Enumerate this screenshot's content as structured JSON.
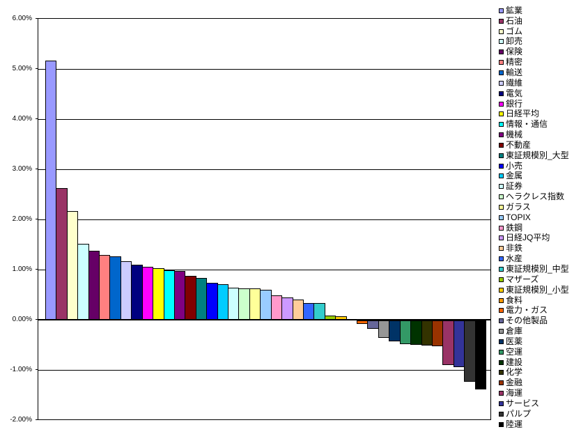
{
  "chart_data": {
    "type": "bar",
    "title": "",
    "xlabel": "",
    "ylabel": "",
    "ylim": [
      -2.0,
      6.0
    ],
    "ytick_step": 1.0,
    "ytick_labels": [
      "6.00%",
      "5.00%",
      "4.00%",
      "3.00%",
      "2.00%",
      "1.00%",
      "0.00%",
      "-1.00%",
      "-2.00%"
    ],
    "grid": true,
    "legend_position": "right",
    "bar_outline_color": "#000000",
    "series": [
      {
        "name": "鉱業",
        "value": 5.16,
        "color": "#9999FF"
      },
      {
        "name": "石油",
        "value": 2.63,
        "color": "#993366"
      },
      {
        "name": "ゴム",
        "value": 2.17,
        "color": "#FFFFCC"
      },
      {
        "name": "卸売",
        "value": 1.52,
        "color": "#CCFFFF"
      },
      {
        "name": "保険",
        "value": 1.38,
        "color": "#660066"
      },
      {
        "name": "精密",
        "value": 1.29,
        "color": "#FF8080"
      },
      {
        "name": "輸送",
        "value": 1.26,
        "color": "#0066CC"
      },
      {
        "name": "繊維",
        "value": 1.17,
        "color": "#CCCCFF"
      },
      {
        "name": "電気",
        "value": 1.1,
        "color": "#000080"
      },
      {
        "name": "銀行",
        "value": 1.06,
        "color": "#FF00FF"
      },
      {
        "name": "日経平均",
        "value": 1.03,
        "color": "#FFFF00"
      },
      {
        "name": "情報・通信",
        "value": 0.99,
        "color": "#00FFFF"
      },
      {
        "name": "機械",
        "value": 0.97,
        "color": "#800080"
      },
      {
        "name": "不動産",
        "value": 0.87,
        "color": "#800000"
      },
      {
        "name": "東証規模別_大型",
        "value": 0.84,
        "color": "#008080"
      },
      {
        "name": "小売",
        "value": 0.74,
        "color": "#0000FF"
      },
      {
        "name": "金属",
        "value": 0.71,
        "color": "#00CCFF"
      },
      {
        "name": "証券",
        "value": 0.64,
        "color": "#CCFFFF"
      },
      {
        "name": "ヘラクレス指数",
        "value": 0.63,
        "color": "#CCFFCC"
      },
      {
        "name": "ガラス",
        "value": 0.62,
        "color": "#FFFF99"
      },
      {
        "name": "TOPIX",
        "value": 0.6,
        "color": "#99CCFF"
      },
      {
        "name": "鉄鋼",
        "value": 0.49,
        "color": "#FF99CC"
      },
      {
        "name": "日経JQ平均",
        "value": 0.44,
        "color": "#CC99FF"
      },
      {
        "name": "非鉄",
        "value": 0.4,
        "color": "#FFCC99"
      },
      {
        "name": "水産",
        "value": 0.34,
        "color": "#3366FF"
      },
      {
        "name": "東証規模別_中型",
        "value": 0.33,
        "color": "#33CCCC"
      },
      {
        "name": "マザーズ",
        "value": 0.09,
        "color": "#99CC00"
      },
      {
        "name": "東証規模別_小型",
        "value": 0.07,
        "color": "#FFCC00"
      },
      {
        "name": "食料",
        "value": 0.0,
        "color": "#FF9900"
      },
      {
        "name": "電力・ガス",
        "value": -0.07,
        "color": "#FF6600"
      },
      {
        "name": "その他製品",
        "value": -0.17,
        "color": "#666699"
      },
      {
        "name": "倉庫",
        "value": -0.35,
        "color": "#969696"
      },
      {
        "name": "医薬",
        "value": -0.42,
        "color": "#003366"
      },
      {
        "name": "空運",
        "value": -0.47,
        "color": "#339966"
      },
      {
        "name": "建設",
        "value": -0.49,
        "color": "#003300"
      },
      {
        "name": "化学",
        "value": -0.5,
        "color": "#333300"
      },
      {
        "name": "金融",
        "value": -0.52,
        "color": "#993300"
      },
      {
        "name": "海運",
        "value": -0.89,
        "color": "#993366"
      },
      {
        "name": "サービス",
        "value": -0.93,
        "color": "#333399"
      },
      {
        "name": "パルプ",
        "value": -1.22,
        "color": "#333333"
      },
      {
        "name": "陸運",
        "value": -1.38,
        "color": "#000000"
      }
    ]
  },
  "colors": {
    "background": "#FFFFFF",
    "plot_background": "#FFFFFF",
    "plot_border": "#000000",
    "gridline": "#000000",
    "axis_text": "#000000",
    "legend_text": "#000000"
  }
}
